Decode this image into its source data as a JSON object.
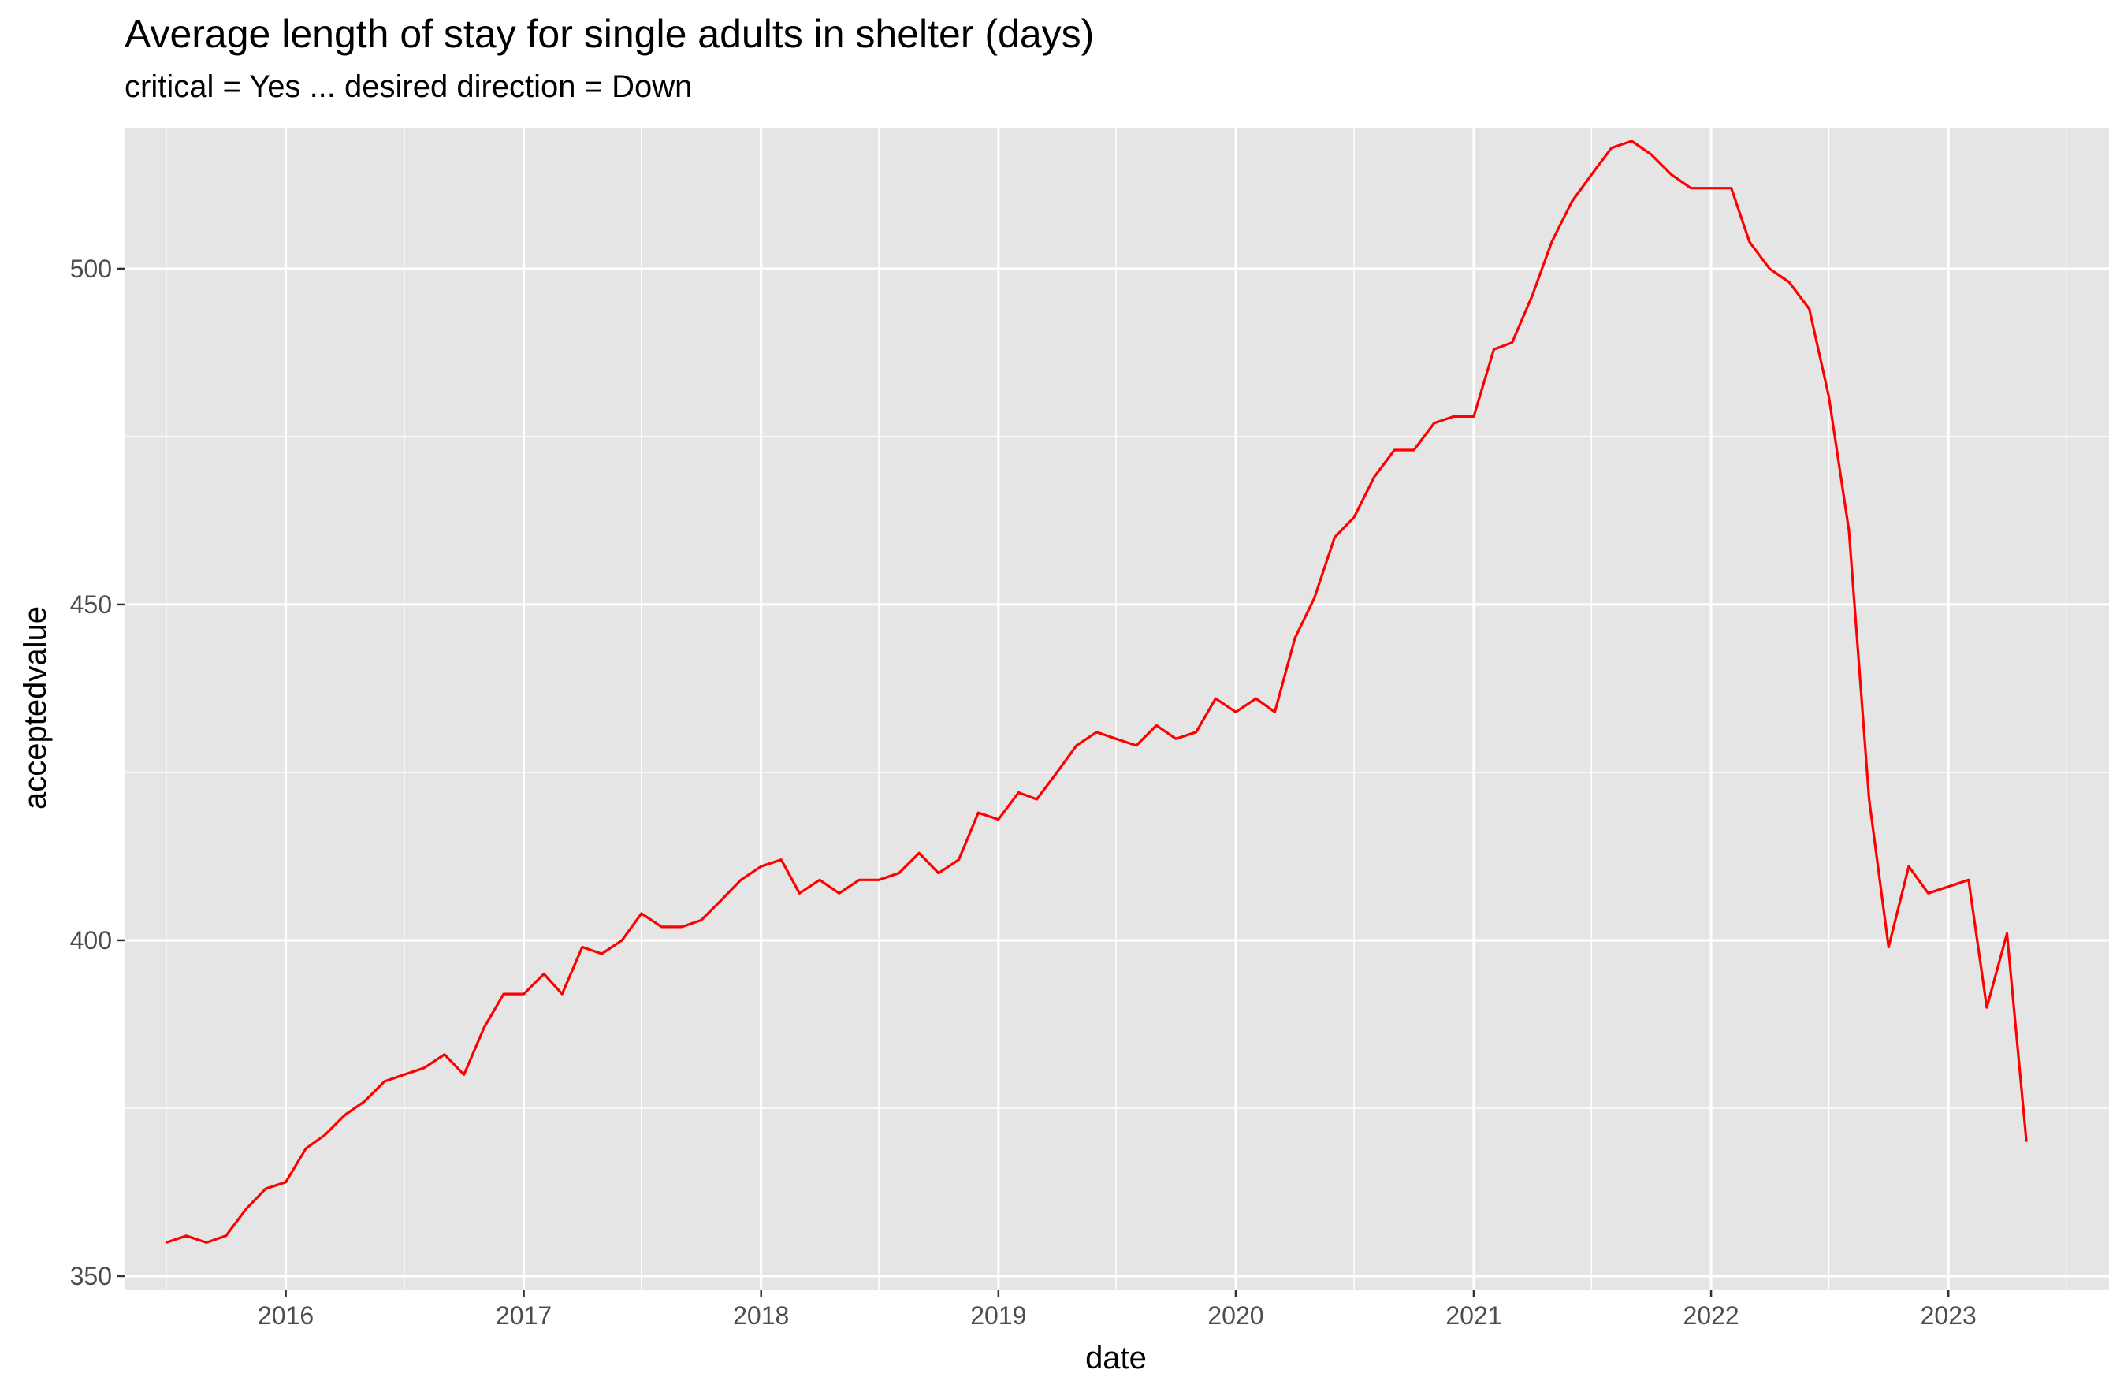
{
  "chart_data": {
    "type": "line",
    "title": "Average length of stay for single adults in shelter (days)",
    "subtitle": "critical = Yes ... desired direction = Down",
    "xlabel": "date",
    "ylabel": "acceptedvalue",
    "x_ticks": [
      "2016",
      "2017",
      "2018",
      "2019",
      "2020",
      "2021",
      "2022",
      "2023"
    ],
    "y_ticks": [
      350,
      400,
      450,
      500
    ],
    "ylim": [
      348,
      521
    ],
    "xlim": [
      "2015-04-28",
      "2023-09-05"
    ],
    "grid": true,
    "line_color": "#ff0000",
    "background_color": "#e5e5e5",
    "series": [
      {
        "x": [
          "2015-07",
          "2015-08",
          "2015-09",
          "2015-10",
          "2015-11",
          "2015-12",
          "2016-01",
          "2016-02",
          "2016-03",
          "2016-04",
          "2016-05",
          "2016-06",
          "2016-07",
          "2016-08",
          "2016-09",
          "2016-10",
          "2016-11",
          "2016-12",
          "2017-01",
          "2017-02",
          "2017-03",
          "2017-04",
          "2017-05",
          "2017-06",
          "2017-07",
          "2017-08",
          "2017-09",
          "2017-10",
          "2017-11",
          "2017-12",
          "2018-01",
          "2018-02",
          "2018-03",
          "2018-04",
          "2018-05",
          "2018-06",
          "2018-07",
          "2018-08",
          "2018-09",
          "2018-10",
          "2018-11",
          "2018-12",
          "2019-01",
          "2019-02",
          "2019-03",
          "2019-04",
          "2019-05",
          "2019-06",
          "2019-07",
          "2019-08",
          "2019-09",
          "2019-10",
          "2019-11",
          "2019-12",
          "2020-01",
          "2020-02",
          "2020-03",
          "2020-04",
          "2020-05",
          "2020-06",
          "2020-07",
          "2020-08",
          "2020-09",
          "2020-10",
          "2020-11",
          "2020-12",
          "2021-01",
          "2021-02",
          "2021-03",
          "2021-04",
          "2021-05",
          "2021-06",
          "2021-07",
          "2021-08",
          "2021-09",
          "2021-10",
          "2021-11",
          "2021-12",
          "2022-01",
          "2022-02",
          "2022-03",
          "2022-04",
          "2022-05",
          "2022-06",
          "2022-07",
          "2022-08",
          "2022-09",
          "2022-10",
          "2022-11",
          "2022-12",
          "2023-01",
          "2023-02",
          "2023-03",
          "2023-04",
          "2023-05"
        ],
        "values": [
          355,
          356,
          355,
          356,
          360,
          363,
          364,
          369,
          371,
          374,
          376,
          379,
          380,
          381,
          383,
          380,
          387,
          392,
          392,
          395,
          392,
          399,
          398,
          400,
          404,
          402,
          402,
          403,
          406,
          409,
          411,
          412,
          407,
          409,
          407,
          409,
          409,
          410,
          413,
          410,
          412,
          419,
          418,
          422,
          421,
          425,
          429,
          431,
          430,
          429,
          432,
          430,
          431,
          436,
          434,
          436,
          434,
          445,
          451,
          460,
          463,
          469,
          473,
          473,
          477,
          478,
          478,
          488,
          489,
          496,
          504,
          510,
          514,
          518,
          519,
          517,
          514,
          512,
          512,
          512,
          504,
          500,
          498,
          494,
          481,
          461,
          421,
          399,
          411,
          407,
          408,
          409,
          390,
          401,
          370
        ]
      }
    ]
  }
}
